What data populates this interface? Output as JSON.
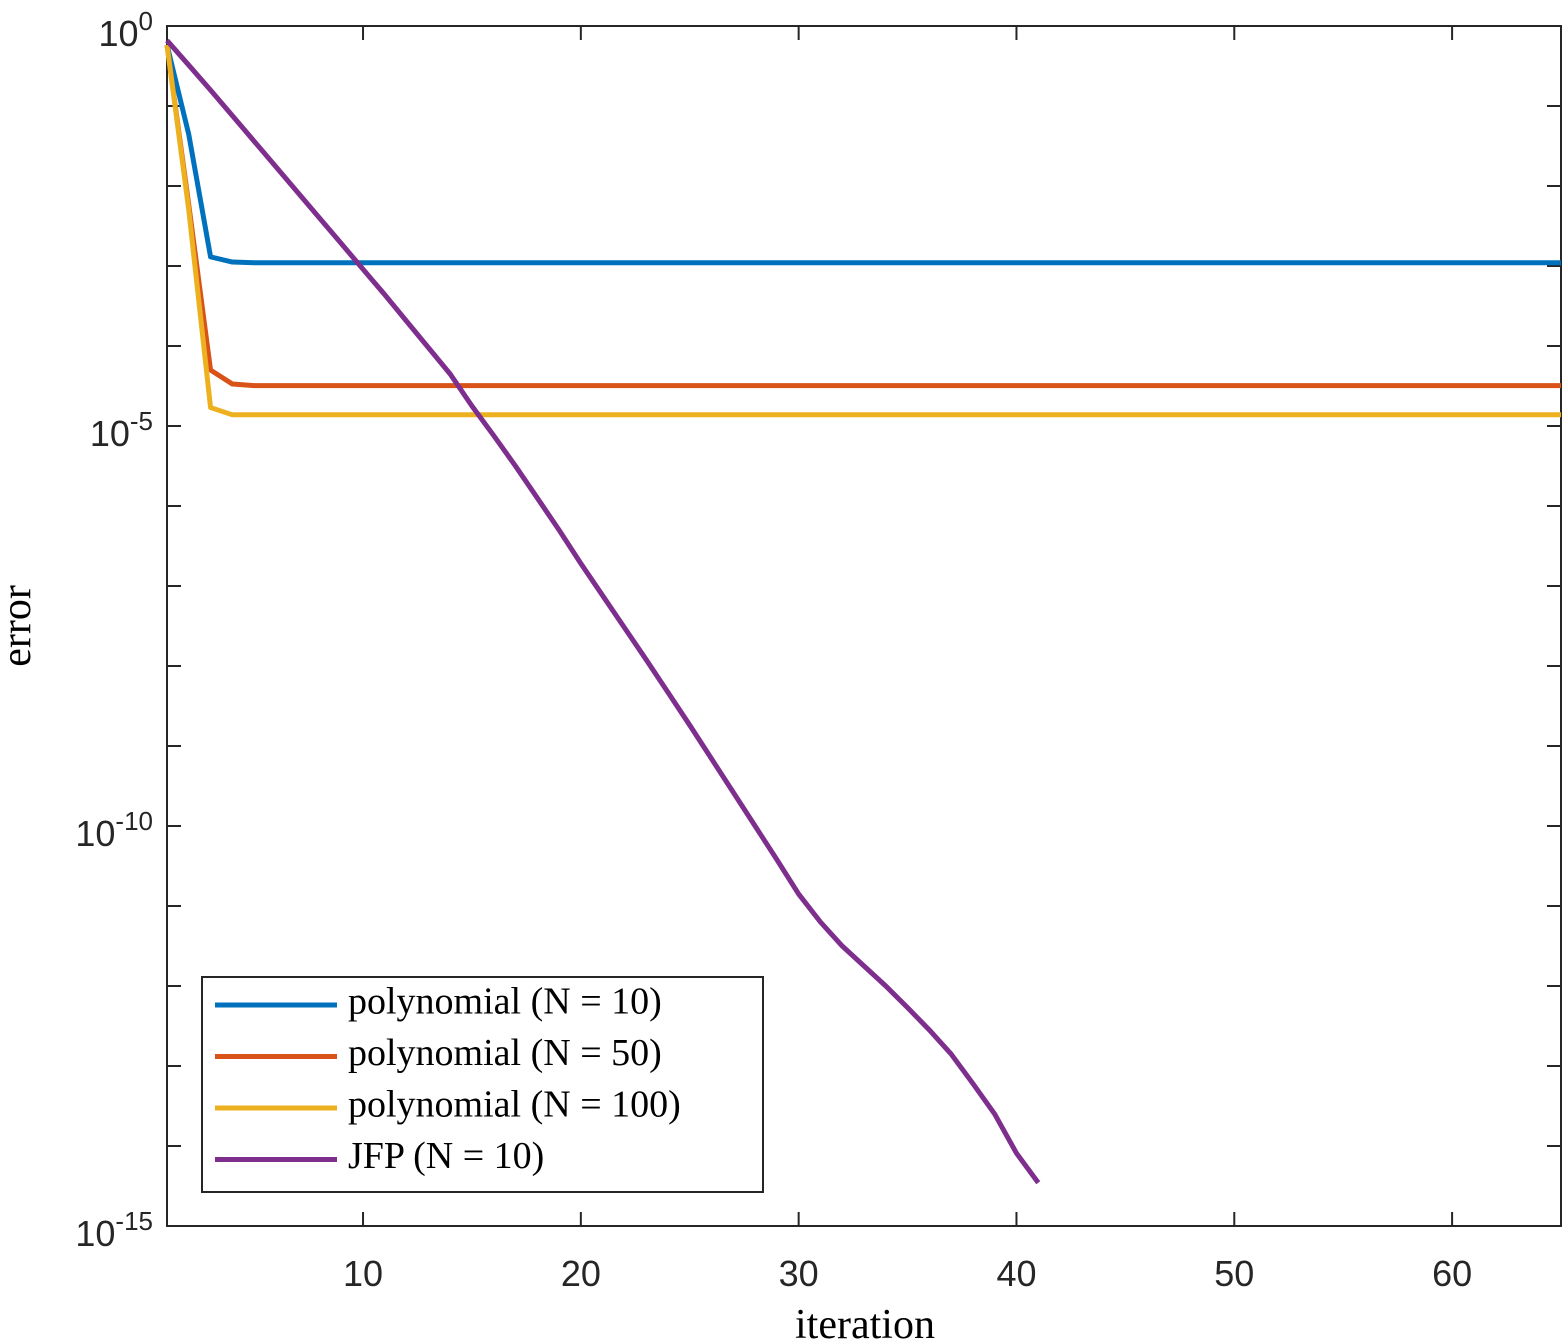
{
  "chart_data": {
    "type": "line",
    "xlabel": "iteration",
    "ylabel": "error",
    "x": [
      1,
      2,
      3,
      4,
      5,
      6,
      7,
      8,
      9,
      10,
      11,
      12,
      13,
      14,
      15,
      16,
      17,
      18,
      19,
      20,
      21,
      22,
      23,
      24,
      25,
      26,
      27,
      28,
      29,
      30,
      31,
      32,
      33,
      34,
      35,
      36,
      37,
      38,
      39,
      40,
      41,
      42,
      43,
      44,
      45,
      46,
      47,
      48,
      49,
      50,
      51,
      52,
      53,
      54,
      55,
      56,
      57,
      58,
      59,
      60,
      61,
      62,
      63,
      64,
      65
    ],
    "series": [
      {
        "name": "polynomial (N = 10)",
        "color": "#0072BD",
        "values": [
          0.58,
          0.044,
          0.0013,
          0.00112,
          0.0011,
          0.0011,
          0.0011,
          0.0011,
          0.0011,
          0.0011,
          0.0011,
          0.0011,
          0.0011,
          0.0011,
          0.0011,
          0.0011,
          0.0011,
          0.0011,
          0.0011,
          0.0011,
          0.0011,
          0.0011,
          0.0011,
          0.0011,
          0.0011,
          0.0011,
          0.0011,
          0.0011,
          0.0011,
          0.0011,
          0.0011,
          0.0011,
          0.0011,
          0.0011,
          0.0011,
          0.0011,
          0.0011,
          0.0011,
          0.0011,
          0.0011,
          0.0011,
          0.0011,
          0.0011,
          0.0011,
          0.0011,
          0.0011,
          0.0011,
          0.0011,
          0.0011,
          0.0011,
          0.0011,
          0.0011,
          0.0011,
          0.0011,
          0.0011,
          0.0011,
          0.0011,
          0.0011,
          0.0011,
          0.0011,
          0.0011,
          0.0011,
          0.0011,
          0.0011,
          0.0011
        ]
      },
      {
        "name": "polynomial (N = 50)",
        "color": "#D95319",
        "values": [
          0.58,
          0.0058,
          5e-05,
          3.35e-05,
          3.2e-05,
          3.2e-05,
          3.2e-05,
          3.2e-05,
          3.2e-05,
          3.2e-05,
          3.2e-05,
          3.2e-05,
          3.2e-05,
          3.2e-05,
          3.2e-05,
          3.2e-05,
          3.2e-05,
          3.2e-05,
          3.2e-05,
          3.2e-05,
          3.2e-05,
          3.2e-05,
          3.2e-05,
          3.2e-05,
          3.2e-05,
          3.2e-05,
          3.2e-05,
          3.2e-05,
          3.2e-05,
          3.2e-05,
          3.2e-05,
          3.2e-05,
          3.2e-05,
          3.2e-05,
          3.2e-05,
          3.2e-05,
          3.2e-05,
          3.2e-05,
          3.2e-05,
          3.2e-05,
          3.2e-05,
          3.2e-05,
          3.2e-05,
          3.2e-05,
          3.2e-05,
          3.2e-05,
          3.2e-05,
          3.2e-05,
          3.2e-05,
          3.2e-05,
          3.2e-05,
          3.2e-05,
          3.2e-05,
          3.2e-05,
          3.2e-05,
          3.2e-05,
          3.2e-05,
          3.2e-05,
          3.2e-05,
          3.2e-05,
          3.2e-05,
          3.2e-05,
          3.2e-05,
          3.2e-05,
          3.2e-05
        ]
      },
      {
        "name": "polynomial (N = 100)",
        "color": "#EDB120",
        "values": [
          0.58,
          0.005,
          1.7e-05,
          1.38e-05,
          1.38e-05,
          1.38e-05,
          1.38e-05,
          1.38e-05,
          1.38e-05,
          1.38e-05,
          1.38e-05,
          1.38e-05,
          1.38e-05,
          1.38e-05,
          1.38e-05,
          1.38e-05,
          1.38e-05,
          1.38e-05,
          1.38e-05,
          1.38e-05,
          1.38e-05,
          1.38e-05,
          1.38e-05,
          1.38e-05,
          1.38e-05,
          1.38e-05,
          1.38e-05,
          1.38e-05,
          1.38e-05,
          1.38e-05,
          1.38e-05,
          1.38e-05,
          1.38e-05,
          1.38e-05,
          1.38e-05,
          1.38e-05,
          1.38e-05,
          1.38e-05,
          1.38e-05,
          1.38e-05,
          1.38e-05,
          1.38e-05,
          1.38e-05,
          1.38e-05,
          1.38e-05,
          1.38e-05,
          1.38e-05,
          1.38e-05,
          1.38e-05,
          1.38e-05,
          1.38e-05,
          1.38e-05,
          1.38e-05,
          1.38e-05,
          1.38e-05,
          1.38e-05,
          1.38e-05,
          1.38e-05,
          1.38e-05,
          1.38e-05,
          1.38e-05,
          1.38e-05,
          1.38e-05,
          1.38e-05,
          1.38e-05
        ]
      },
      {
        "name": "JFP (N = 10)",
        "color": "#7E2F8E",
        "values": [
          0.66,
          0.324,
          0.158,
          0.0759,
          0.0363,
          0.0174,
          0.00832,
          0.00398,
          0.00191,
          0.000912,
          0.000437,
          0.000204,
          9.55e-05,
          4.47e-05,
          1.78e-05,
          7.59e-06,
          3.16e-06,
          1.26e-06,
          5.01e-07,
          1.91e-07,
          7.59e-08,
          3.02e-08,
          1.2e-08,
          4.68e-09,
          1.82e-09,
          6.92e-10,
          2.63e-10,
          1e-10,
          3.8e-11,
          1.41e-11,
          6.31e-12,
          3.16e-12,
          1.78e-12,
          1e-12,
          5.37e-13,
          2.82e-13,
          1.41e-13,
          6.03e-14,
          2.51e-14,
          8.13e-15,
          3.47e-15,
          null,
          null,
          null,
          null,
          null,
          null,
          null,
          null,
          null,
          null,
          null,
          null,
          null,
          null,
          null,
          null,
          null,
          null,
          null,
          null,
          null,
          null,
          null,
          null
        ]
      }
    ],
    "xlim": [
      1,
      65
    ],
    "xticks": [
      10,
      20,
      30,
      40,
      50,
      60
    ],
    "ylim": [
      1e-15,
      1
    ],
    "ylog": true,
    "yticks": [
      {
        "value": 1,
        "label": "10^0"
      },
      {
        "value": 1e-05,
        "label": "10^-5"
      },
      {
        "value": 1e-10,
        "label": "10^-10"
      },
      {
        "value": 1e-15,
        "label": "10^-15"
      }
    ],
    "yminorticks": [
      0.1,
      0.01,
      0.001,
      0.0001,
      1e-06,
      1e-07,
      1e-08,
      1e-09,
      1e-11,
      1e-12,
      1e-13,
      1e-14
    ],
    "legend": "lower left",
    "grid": false
  }
}
